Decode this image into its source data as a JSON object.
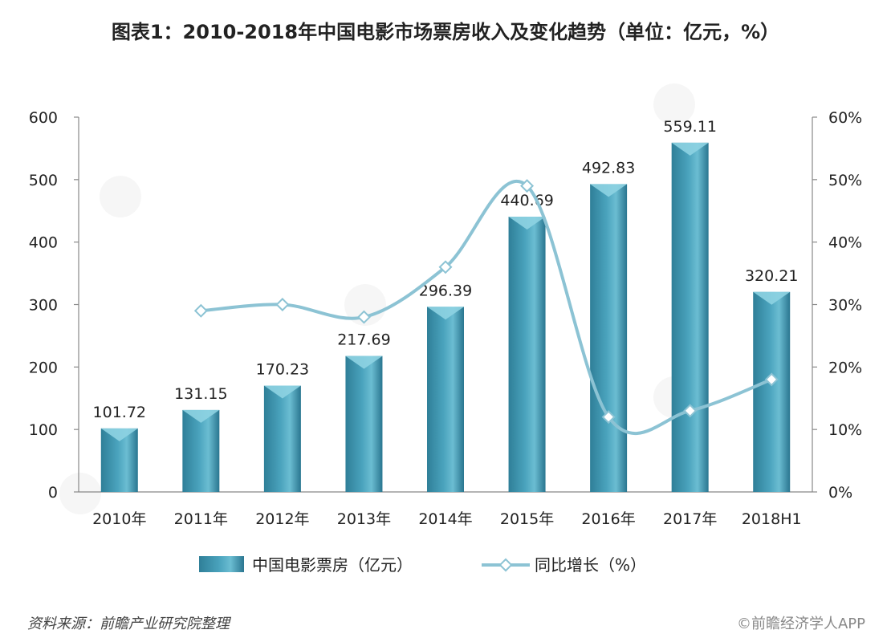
{
  "chart_data": {
    "type": "bar",
    "title": "图表1：2010-2018年中国电影市场票房收入及变化趋势（单位：亿元，%）",
    "categories": [
      "2010年",
      "2011年",
      "2012年",
      "2013年",
      "2014年",
      "2015年",
      "2016年",
      "2017年",
      "2018H1"
    ],
    "series": [
      {
        "name": "中国电影票房（亿元）",
        "type": "bar",
        "axis": "left",
        "values": [
          101.72,
          131.15,
          170.23,
          217.69,
          296.39,
          440.69,
          492.83,
          559.11,
          320.21
        ]
      },
      {
        "name": "同比增长（%）",
        "type": "line",
        "axis": "right",
        "values": [
          null,
          29,
          30,
          28,
          36,
          49,
          12,
          13,
          18
        ]
      }
    ],
    "ylim": [
      0,
      600
    ],
    "y2lim": [
      0,
      60
    ],
    "y_ticks": [
      "0",
      "100",
      "200",
      "300",
      "400",
      "500",
      "600"
    ],
    "y2_ticks": [
      "0%",
      "10%",
      "20%",
      "30%",
      "40%",
      "50%",
      "60%"
    ],
    "legend_position": "bottom",
    "grid": false,
    "colors": {
      "bar": "#4aa3bd",
      "bar_top": "#8ed3e2",
      "line": "#8cc3d4"
    }
  },
  "footer": {
    "source": "资料来源：前瞻产业研究院整理",
    "credit": "©前瞻经济学人APP"
  }
}
